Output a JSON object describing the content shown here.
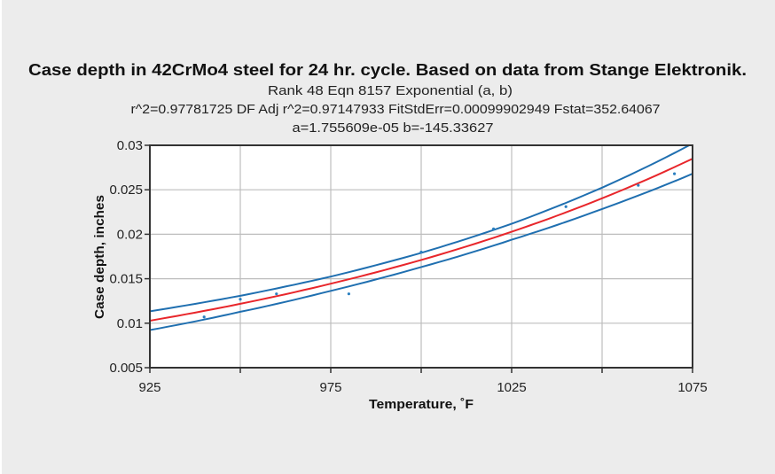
{
  "chart_data": {
    "type": "scatter",
    "title": "Case depth in 42CrMo4 steel for 24 hr. cycle. Based on data from Stange Elektronik.",
    "subtitle_lines": [
      "Rank 48   Eqn 8157   Exponential (a, b)",
      "r^2=0.97781725   DF Adj r^2=0.97147933   FitStdErr=0.00099902949   Fstat=352.64067",
      "a=1.755609e-05   b=-145.33627"
    ],
    "xlabel": "Temperature, ˚F",
    "ylabel": "Case depth, inches",
    "xlim": [
      925,
      1075
    ],
    "ylim": [
      0.005,
      0.03
    ],
    "x_gridlines": [
      925,
      950,
      975,
      1000,
      1025,
      1050,
      1075
    ],
    "x_tick_labels": [
      "925",
      "975",
      "1025",
      "1075"
    ],
    "x_tick_label_values": [
      925,
      975,
      1025,
      1075
    ],
    "y_ticks": [
      0.005,
      0.01,
      0.015,
      0.02,
      0.025,
      0.03
    ],
    "y_tick_labels": [
      "0.005",
      "0.01",
      "0.015",
      "0.02",
      "0.025",
      "0.03"
    ],
    "grid": true,
    "points": {
      "x": [
        940,
        950,
        960,
        980,
        1000,
        1020,
        1040,
        1060,
        1070
      ],
      "y": [
        0.0107,
        0.0127,
        0.0133,
        0.0133,
        0.018,
        0.0206,
        0.0231,
        0.0255,
        0.0268
      ],
      "color": "#2a7fc0"
    },
    "fit_curve": {
      "x": [
        925,
        950,
        975,
        1000,
        1025,
        1050,
        1075
      ],
      "y": [
        0.01028,
        0.01218,
        0.01444,
        0.01711,
        0.02028,
        0.02404,
        0.0285
      ],
      "color": "#e8262b"
    },
    "upper_band": {
      "x": [
        925,
        950,
        975,
        1000,
        1025,
        1050,
        1075
      ],
      "y": [
        0.01133,
        0.01308,
        0.01524,
        0.01791,
        0.02118,
        0.02524,
        0.0302
      ],
      "color": "#1f6fb0"
    },
    "lower_band": {
      "x": [
        925,
        950,
        975,
        1000,
        1025,
        1050,
        1075
      ],
      "y": [
        0.00923,
        0.01128,
        0.01364,
        0.01631,
        0.01938,
        0.02284,
        0.0268
      ],
      "color": "#1f6fb0"
    }
  }
}
